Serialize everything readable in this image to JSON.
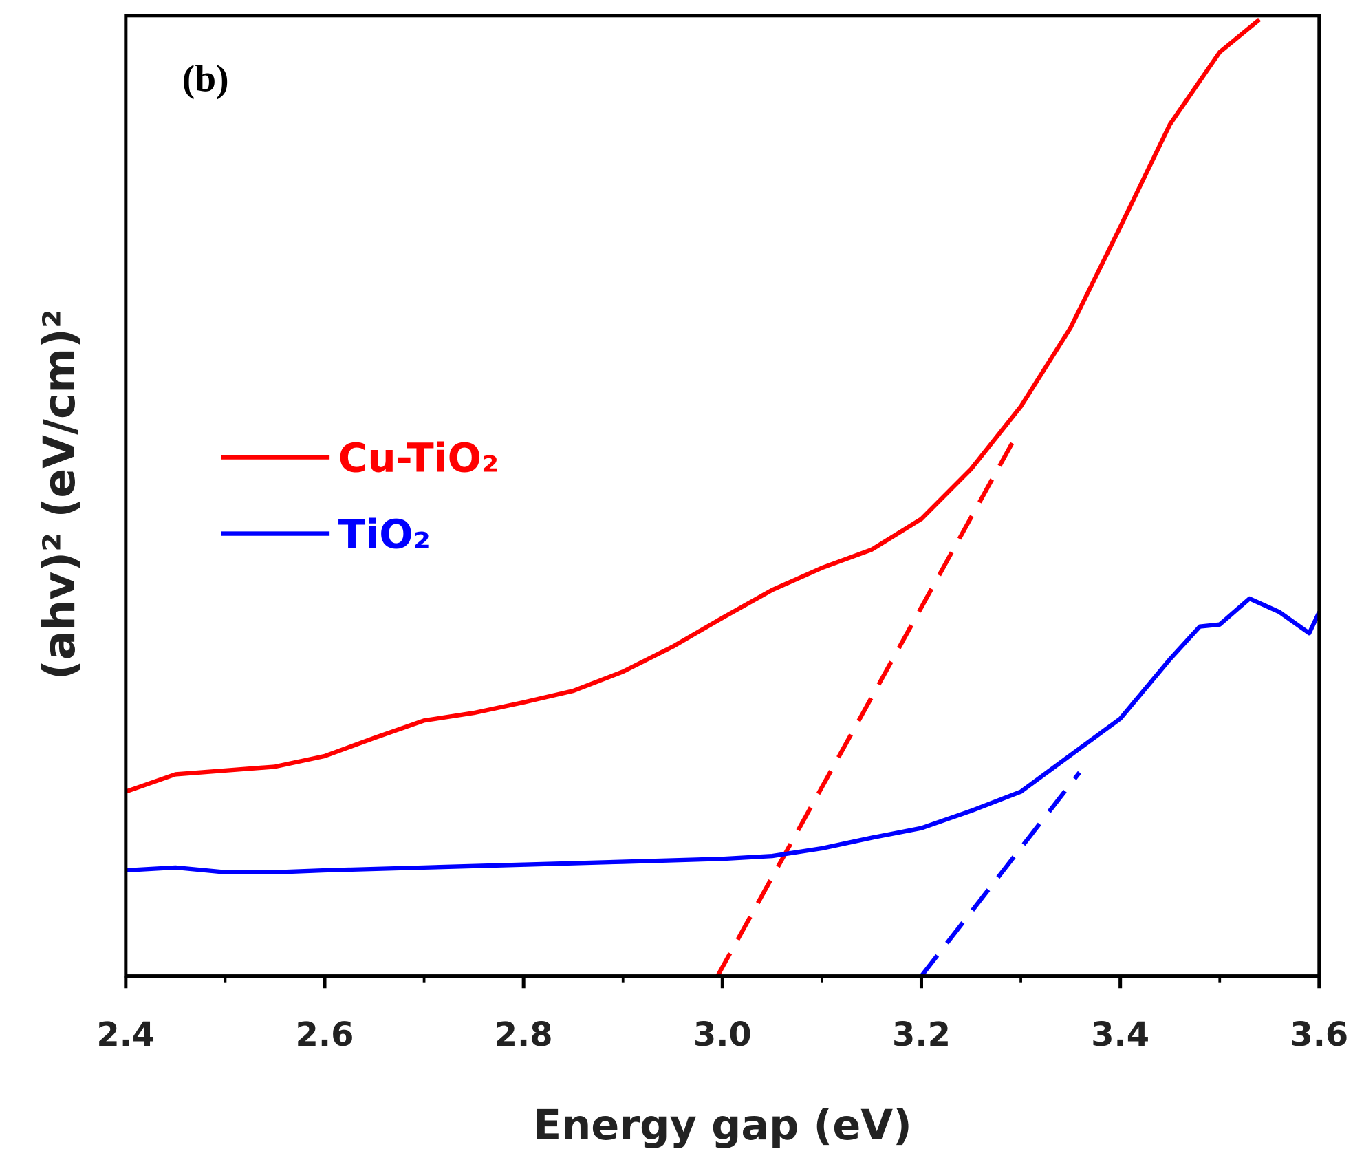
{
  "chart_data": {
    "type": "line",
    "annotations": [
      "(b)"
    ],
    "xlabel": "Energy gap (eV)",
    "ylabel": "(ahv)² (eV/cm)²",
    "xlim": [
      2.4,
      3.6
    ],
    "ylim": [
      0,
      100
    ],
    "xticks": [
      2.4,
      2.6,
      2.8,
      {
        "value": 3,
        "label": "3.0"
      },
      3.2,
      3.4,
      3.6
    ],
    "xminorticks": [
      2.5,
      2.7,
      2.9,
      3.1,
      3.3,
      3.5
    ],
    "legend": "left",
    "series": [
      {
        "name": "Cu-TiO₂",
        "color": "#ff0000",
        "x": [
          2.4,
          2.45,
          2.5,
          2.55,
          2.6,
          2.65,
          2.7,
          2.75,
          2.8,
          2.85,
          2.9,
          2.95,
          3.0,
          3.05,
          3.1,
          3.15,
          3.2,
          3.25,
          3.3,
          3.35,
          3.4,
          3.45,
          3.5,
          3.54
        ],
        "values": [
          19.2,
          21.0,
          21.4,
          21.8,
          22.9,
          24.8,
          26.6,
          27.4,
          28.5,
          29.7,
          31.7,
          34.3,
          37.3,
          40.2,
          42.5,
          44.4,
          47.6,
          52.8,
          59.3,
          67.5,
          78.0,
          88.7,
          96.2,
          99.6
        ]
      },
      {
        "name": "TiO₂",
        "color": "#0000ff",
        "x": [
          2.4,
          2.45,
          2.5,
          2.55,
          2.6,
          2.7,
          2.8,
          2.9,
          3.0,
          3.05,
          3.1,
          3.15,
          3.2,
          3.25,
          3.3,
          3.35,
          3.4,
          3.45,
          3.48,
          3.5,
          3.53,
          3.56,
          3.59,
          3.6
        ],
        "values": [
          11.0,
          11.3,
          10.8,
          10.8,
          11.0,
          11.3,
          11.6,
          11.9,
          12.2,
          12.5,
          13.3,
          14.4,
          15.4,
          17.2,
          19.2,
          23.0,
          26.8,
          33.0,
          36.4,
          36.6,
          39.3,
          37.9,
          35.7,
          37.9
        ]
      }
    ],
    "fit_lines": [
      {
        "color": "#ff0000",
        "x": [
          2.995,
          3.294
        ],
        "values": [
          0,
          56.0
        ]
      },
      {
        "color": "#0000ff",
        "x": [
          3.2,
          3.359
        ],
        "values": [
          0,
          21.2
        ]
      }
    ]
  }
}
